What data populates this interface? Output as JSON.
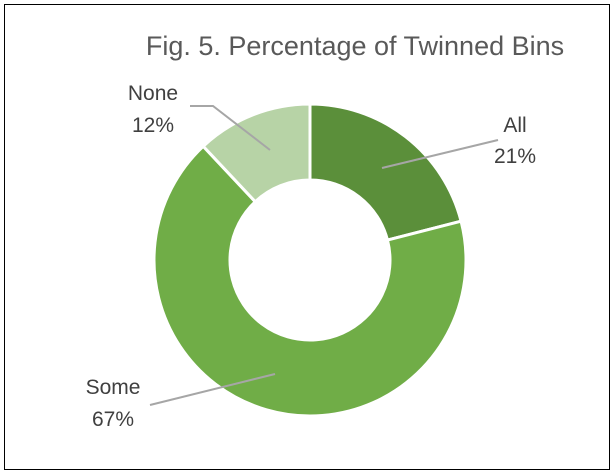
{
  "chart_data": {
    "type": "pie",
    "variant": "doughnut",
    "title": "Fig. 5. Percentage of Twinned Bins",
    "slices": [
      {
        "label": "All",
        "value": 21,
        "value_label": "21%",
        "color": "#5b8f3a"
      },
      {
        "label": "Some",
        "value": 67,
        "value_label": "67%",
        "color": "#70ad47"
      },
      {
        "label": "None",
        "value": 12,
        "value_label": "12%",
        "color": "#b7d3a6"
      }
    ],
    "legend": "none",
    "label_style": "callout"
  }
}
